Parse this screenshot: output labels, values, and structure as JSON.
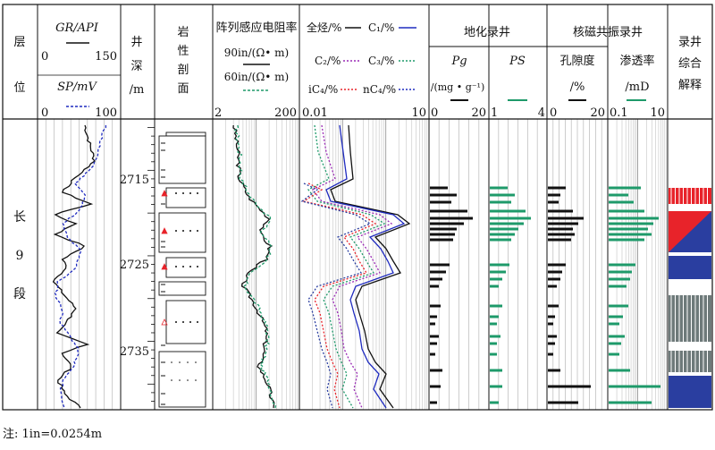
{
  "headers": {
    "layer": [
      "层",
      "位"
    ],
    "gr": {
      "label": "GR/API",
      "min": "0",
      "max": "150"
    },
    "sp": {
      "label": "SP/mV",
      "min": "0",
      "max": "100"
    },
    "depth": [
      "井",
      "深",
      "/m"
    ],
    "litho": [
      "岩",
      "性",
      "剖",
      "面"
    ],
    "resist": {
      "title": "阵列感应电阻率",
      "c90": "90in/(Ω• m)",
      "c60": "60in/(Ω• m)",
      "min": "2",
      "max": "200"
    },
    "gas": {
      "total": "全烃/%",
      "c1": "C₁/%",
      "c2": "C₂/%",
      "c3": "C₃/%",
      "ic4": "iC₄/%",
      "nc4": "nC₄/%",
      "min": "0.01",
      "max": "10"
    },
    "geochem": {
      "title": "地化录井",
      "pg": "Pg",
      "pg_unit": "/(mg • g⁻¹)",
      "pg_min": "0",
      "pg_max": "20",
      "ps": "PS",
      "ps_min": "1",
      "ps_max": "4"
    },
    "nmr": {
      "title": "核磁共振录井",
      "por": "孔隙度",
      "por_unit": "/%",
      "por_min": "0",
      "por_max": "20",
      "perm": "渗透率",
      "perm_unit": "/mD",
      "perm_min": "0.1",
      "perm_max": "10"
    },
    "interp": [
      "录井",
      "综合",
      "解释"
    ]
  },
  "zone": [
    "长",
    "9",
    "段"
  ],
  "depth_ticks": [
    "2715",
    "2725",
    "2735"
  ],
  "note": "注: 1in=0.0254m",
  "colors": {
    "black": "#111111",
    "blue": "#1f2bbf",
    "green": "#1e9a6a",
    "purple": "#9a2ab5",
    "red": "#e8232a",
    "navy": "#2a3ea0",
    "gray": "#6e7a7a"
  },
  "chart_data": {
    "type": "well-log",
    "depth_range_m": [
      2709,
      2743
    ],
    "tracks": [
      "GR",
      "SP",
      "resistivity",
      "gas",
      "Pg",
      "PS",
      "porosity",
      "permeability",
      "interpretation"
    ]
  }
}
